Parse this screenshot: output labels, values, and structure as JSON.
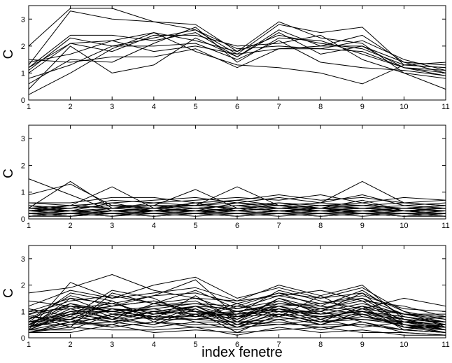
{
  "chart_data": [
    {
      "type": "line",
      "ylabel": "C",
      "xlabel": "",
      "xlim": [
        1,
        11
      ],
      "ylim": [
        0,
        3.5
      ],
      "xticks": [
        "1",
        "2",
        "3",
        "4",
        "5",
        "6",
        "7",
        "8",
        "9",
        "10",
        "11"
      ],
      "yticks": [
        "0",
        "1",
        "2",
        "3"
      ],
      "grid": false,
      "x": [
        1,
        2,
        3,
        4,
        5,
        6,
        7,
        8,
        9,
        10,
        11
      ],
      "series": [
        {
          "values": [
            2.0,
            3.4,
            3.4,
            2.9,
            2.8,
            1.8,
            2.9,
            2.3,
            2.1,
            1.0,
            0.4
          ]
        },
        {
          "values": [
            1.3,
            3.3,
            3.0,
            2.9,
            2.6,
            1.7,
            2.8,
            2.5,
            2.7,
            1.3,
            1.2
          ]
        },
        {
          "values": [
            1.2,
            2.4,
            2.4,
            2.2,
            2.5,
            1.6,
            2.6,
            2.0,
            2.0,
            1.4,
            1.3
          ]
        },
        {
          "values": [
            0.8,
            1.3,
            2.0,
            2.3,
            2.6,
            1.9,
            2.0,
            1.9,
            1.8,
            1.2,
            0.9
          ]
        },
        {
          "values": [
            0.4,
            2.0,
            1.0,
            1.3,
            2.3,
            1.6,
            2.5,
            1.7,
            2.0,
            1.2,
            1.0
          ]
        },
        {
          "values": [
            0.2,
            1.0,
            1.9,
            2.5,
            1.8,
            1.3,
            1.2,
            1.0,
            0.6,
            1.3,
            1.4
          ]
        },
        {
          "values": [
            1.2,
            2.1,
            1.8,
            2.4,
            2.4,
            2.0,
            2.1,
            2.4,
            1.5,
            1.0,
            0.8
          ]
        },
        {
          "values": [
            1.5,
            1.4,
            1.6,
            1.6,
            1.9,
            1.2,
            1.9,
            1.9,
            2.2,
            1.5,
            1.1
          ]
        },
        {
          "values": [
            1.1,
            2.3,
            2.0,
            2.0,
            2.1,
            1.5,
            2.2,
            1.4,
            1.2,
            1.1,
            0.9
          ]
        },
        {
          "values": [
            1.0,
            2.1,
            2.2,
            2.5,
            2.2,
            1.8,
            2.4,
            2.1,
            1.9,
            1.3,
            1.2
          ]
        },
        {
          "values": [
            1.4,
            1.7,
            2.2,
            1.8,
            2.0,
            1.7,
            1.9,
            2.0,
            2.4,
            1.4,
            1.0
          ]
        },
        {
          "values": [
            0.6,
            1.5,
            1.4,
            2.1,
            2.7,
            1.4,
            2.3,
            2.2,
            1.7,
            1.2,
            1.1
          ]
        }
      ]
    },
    {
      "type": "line",
      "ylabel": "C",
      "xlabel": "",
      "xlim": [
        1,
        11
      ],
      "ylim": [
        0,
        3.5
      ],
      "xticks": [
        "1",
        "2",
        "3",
        "4",
        "5",
        "6",
        "7",
        "8",
        "9",
        "10",
        "11"
      ],
      "yticks": [
        "0",
        "1",
        "2",
        "3"
      ],
      "grid": false,
      "x": [
        1,
        2,
        3,
        4,
        5,
        6,
        7,
        8,
        9,
        10,
        11
      ],
      "series": [
        {
          "values": [
            1.5,
            0.9,
            0.3,
            0.3,
            0.4,
            0.5,
            0.3,
            0.4,
            0.4,
            0.3,
            0.2
          ]
        },
        {
          "values": [
            0.9,
            1.3,
            0.5,
            0.4,
            0.3,
            0.4,
            0.3,
            0.3,
            0.3,
            0.2,
            0.2
          ]
        },
        {
          "values": [
            0.4,
            1.4,
            0.4,
            0.6,
            0.5,
            0.6,
            0.5,
            0.6,
            1.4,
            0.6,
            0.5
          ]
        },
        {
          "values": [
            0.3,
            0.5,
            1.2,
            0.4,
            0.6,
            0.3,
            0.4,
            0.5,
            0.6,
            0.3,
            0.3
          ]
        },
        {
          "values": [
            0.2,
            0.3,
            0.4,
            0.5,
            1.1,
            0.4,
            0.3,
            0.2,
            0.3,
            0.4,
            0.3
          ]
        },
        {
          "values": [
            0.3,
            0.4,
            0.5,
            0.4,
            0.5,
            1.2,
            0.5,
            0.4,
            0.5,
            0.4,
            0.4
          ]
        },
        {
          "values": [
            0.6,
            0.6,
            0.8,
            0.8,
            0.6,
            0.7,
            0.9,
            0.7,
            0.8,
            0.6,
            0.7
          ]
        },
        {
          "values": [
            0.5,
            0.4,
            0.7,
            0.6,
            0.7,
            0.8,
            0.7,
            0.9,
            0.6,
            0.8,
            0.7
          ]
        },
        {
          "values": [
            0.4,
            0.5,
            0.6,
            0.7,
            0.8,
            0.6,
            0.8,
            0.6,
            0.9,
            0.5,
            0.6
          ]
        },
        {
          "values": [
            0.3,
            0.4,
            0.5,
            0.5,
            0.4,
            0.5,
            0.6,
            0.5,
            0.5,
            0.4,
            0.5
          ]
        },
        {
          "values": [
            0.2,
            0.3,
            0.3,
            0.4,
            0.3,
            0.3,
            0.4,
            0.3,
            0.4,
            0.3,
            0.3
          ]
        },
        {
          "values": [
            0.1,
            0.2,
            0.2,
            0.2,
            0.2,
            0.2,
            0.2,
            0.2,
            0.2,
            0.2,
            0.2
          ]
        },
        {
          "values": [
            0.2,
            0.1,
            0.3,
            0.2,
            0.3,
            0.2,
            0.3,
            0.2,
            0.3,
            0.2,
            0.1
          ]
        },
        {
          "values": [
            0.1,
            0.2,
            0.1,
            0.3,
            0.2,
            0.3,
            0.2,
            0.3,
            0.2,
            0.1,
            0.2
          ]
        },
        {
          "values": [
            0.3,
            0.2,
            0.4,
            0.3,
            0.4,
            0.3,
            0.4,
            0.4,
            0.3,
            0.3,
            0.4
          ]
        },
        {
          "values": [
            0.4,
            0.3,
            0.3,
            0.4,
            0.5,
            0.4,
            0.5,
            0.3,
            0.4,
            0.5,
            0.4
          ]
        },
        {
          "values": [
            0.2,
            0.3,
            0.2,
            0.3,
            0.2,
            0.4,
            0.3,
            0.4,
            0.2,
            0.3,
            0.2
          ]
        },
        {
          "values": [
            0.1,
            0.1,
            0.2,
            0.1,
            0.2,
            0.1,
            0.2,
            0.1,
            0.2,
            0.1,
            0.1
          ]
        },
        {
          "values": [
            0.3,
            0.5,
            0.4,
            0.5,
            0.3,
            0.6,
            0.4,
            0.5,
            0.4,
            0.4,
            0.5
          ]
        },
        {
          "values": [
            0.5,
            0.3,
            0.6,
            0.3,
            0.6,
            0.3,
            0.6,
            0.4,
            0.7,
            0.3,
            0.4
          ]
        },
        {
          "values": [
            0.2,
            0.2,
            0.3,
            0.2,
            0.3,
            0.2,
            0.3,
            0.3,
            0.2,
            0.2,
            0.3
          ]
        },
        {
          "values": [
            0.1,
            0.2,
            0.1,
            0.2,
            0.1,
            0.2,
            0.1,
            0.2,
            0.1,
            0.2,
            0.1
          ]
        },
        {
          "values": [
            0.3,
            0.3,
            0.2,
            0.3,
            0.3,
            0.2,
            0.3,
            0.2,
            0.3,
            0.3,
            0.2
          ]
        },
        {
          "values": [
            0.4,
            0.4,
            0.5,
            0.3,
            0.4,
            0.5,
            0.4,
            0.5,
            0.4,
            0.3,
            0.4
          ]
        },
        {
          "values": [
            0.2,
            0.1,
            0.2,
            0.1,
            0.2,
            0.1,
            0.2,
            0.1,
            0.2,
            0.1,
            0.2
          ]
        },
        {
          "values": [
            0.6,
            0.5,
            0.4,
            0.5,
            0.5,
            0.7,
            0.5,
            0.6,
            0.5,
            0.6,
            0.5
          ]
        }
      ]
    },
    {
      "type": "line",
      "ylabel": "C",
      "xlabel": "index fenetre",
      "xlim": [
        1,
        11
      ],
      "ylim": [
        0,
        3.5
      ],
      "xticks": [
        "1",
        "2",
        "3",
        "4",
        "5",
        "6",
        "7",
        "8",
        "9",
        "10",
        "11"
      ],
      "yticks": [
        "0",
        "1",
        "2",
        "3"
      ],
      "grid": false,
      "x": [
        1,
        2,
        3,
        4,
        5,
        6,
        7,
        8,
        9,
        10,
        11
      ],
      "series": [
        {
          "values": [
            1.7,
            1.9,
            2.4,
            1.8,
            1.5,
            1.4,
            2.0,
            1.6,
            2.0,
            0.7,
            0.3
          ]
        },
        {
          "values": [
            0.3,
            2.1,
            1.5,
            2.0,
            2.3,
            1.5,
            1.9,
            1.5,
            1.9,
            1.0,
            0.4
          ]
        },
        {
          "values": [
            0.5,
            1.0,
            1.2,
            1.6,
            2.2,
            0.8,
            1.4,
            1.0,
            1.7,
            0.4,
            0.2
          ]
        },
        {
          "values": [
            0.9,
            0.4,
            1.7,
            1.3,
            1.8,
            1.1,
            1.6,
            1.3,
            1.5,
            0.6,
            0.3
          ]
        },
        {
          "values": [
            1.4,
            1.2,
            1.0,
            0.8,
            0.7,
            1.0,
            1.2,
            0.7,
            1.1,
            1.5,
            1.2
          ]
        },
        {
          "values": [
            0.2,
            0.6,
            0.5,
            0.9,
            1.0,
            0.2,
            0.9,
            0.6,
            0.7,
            0.5,
            0.2
          ]
        },
        {
          "values": [
            0.4,
            1.5,
            0.9,
            1.1,
            1.3,
            1.2,
            1.7,
            1.2,
            1.8,
            0.8,
            0.6
          ]
        },
        {
          "values": [
            0.6,
            1.7,
            1.4,
            0.7,
            1.6,
            0.6,
            1.5,
            0.9,
            1.2,
            0.3,
            0.5
          ]
        },
        {
          "values": [
            1.1,
            0.8,
            1.8,
            1.5,
            0.8,
            1.3,
            0.8,
            1.6,
            0.8,
            0.6,
            0.8
          ]
        },
        {
          "values": [
            0.3,
            0.9,
            0.7,
            0.5,
            1.1,
            0.4,
            1.0,
            0.5,
            1.0,
            0.4,
            0.4
          ]
        },
        {
          "values": [
            0.8,
            0.6,
            1.1,
            1.0,
            0.9,
            0.9,
            1.1,
            0.8,
            0.9,
            0.7,
            0.6
          ]
        },
        {
          "values": [
            0.5,
            1.3,
            0.8,
            1.2,
            1.4,
            0.7,
            1.3,
            1.1,
            1.4,
            0.5,
            0.3
          ]
        },
        {
          "values": [
            0.2,
            0.5,
            0.6,
            0.4,
            0.6,
            0.3,
            0.7,
            0.3,
            0.6,
            0.2,
            0.1
          ]
        },
        {
          "values": [
            1.0,
            1.1,
            1.3,
            0.9,
            1.2,
            1.1,
            1.4,
            1.0,
            1.3,
            0.9,
            0.7
          ]
        },
        {
          "values": [
            0.4,
            0.7,
            0.4,
            0.6,
            0.5,
            0.5,
            0.6,
            0.4,
            0.5,
            0.3,
            0.2
          ]
        },
        {
          "values": [
            0.7,
            1.6,
            1.2,
            1.4,
            1.0,
            0.9,
            1.8,
            1.4,
            1.1,
            0.9,
            0.9
          ]
        },
        {
          "values": [
            0.3,
            0.3,
            0.9,
            0.7,
            0.7,
            0.6,
            0.5,
            0.7,
            0.4,
            0.6,
            0.4
          ]
        },
        {
          "values": [
            0.6,
            1.0,
            1.0,
            1.1,
            0.8,
            1.2,
            1.0,
            0.9,
            1.0,
            0.8,
            0.5
          ]
        },
        {
          "values": [
            0.9,
            1.4,
            1.6,
            1.3,
            1.5,
            1.0,
            1.2,
            1.3,
            1.6,
            1.1,
            1.0
          ]
        },
        {
          "values": [
            0.2,
            0.4,
            0.3,
            0.3,
            0.4,
            0.1,
            0.4,
            0.2,
            0.3,
            0.1,
            0.1
          ]
        },
        {
          "values": [
            1.2,
            1.8,
            1.5,
            1.7,
            1.9,
            1.4,
            1.6,
            1.8,
            1.4,
            1.2,
            0.8
          ]
        },
        {
          "values": [
            0.4,
            0.8,
            0.6,
            0.8,
            0.7,
            0.8,
            0.9,
            0.6,
            0.8,
            0.5,
            0.3
          ]
        },
        {
          "values": [
            0.5,
            1.2,
            1.1,
            0.9,
            1.1,
            0.5,
            1.1,
            0.9,
            1.2,
            0.7,
            0.6
          ]
        },
        {
          "values": [
            0.3,
            0.6,
            0.8,
            0.5,
            0.9,
            0.4,
            0.8,
            0.5,
            0.9,
            0.4,
            0.3
          ]
        },
        {
          "values": [
            0.6,
            0.9,
            1.2,
            1.4,
            1.0,
            0.7,
            1.5,
            1.1,
            1.5,
            0.9,
            0.8
          ]
        },
        {
          "values": [
            0.7,
            1.3,
            1.0,
            1.2,
            1.3,
            1.0,
            1.3,
            1.2,
            1.0,
            0.8,
            0.5
          ]
        },
        {
          "values": [
            0.2,
            0.2,
            0.5,
            0.2,
            0.3,
            0.2,
            0.3,
            0.4,
            0.2,
            0.2,
            0.1
          ]
        },
        {
          "values": [
            1.0,
            1.5,
            1.3,
            1.6,
            1.7,
            1.3,
            1.7,
            1.5,
            1.7,
            1.0,
            0.7
          ]
        },
        {
          "values": [
            0.4,
            1.1,
            0.7,
            1.0,
            0.6,
            0.6,
            0.7,
            0.8,
            0.7,
            0.6,
            0.5
          ]
        },
        {
          "values": [
            0.8,
            0.7,
            1.4,
            0.6,
            1.2,
            0.8,
            1.2,
            0.7,
            1.1,
            0.5,
            0.4
          ]
        },
        {
          "values": [
            0.5,
            0.5,
            0.9,
            0.8,
            0.8,
            0.9,
            1.0,
            1.0,
            0.6,
            0.3,
            0.2
          ]
        },
        {
          "values": [
            0.3,
            1.0,
            0.6,
            1.0,
            1.2,
            0.5,
            0.9,
            0.8,
            1.0,
            0.6,
            0.6
          ]
        },
        {
          "values": [
            0.6,
            0.7,
            1.1,
            0.7,
            0.9,
            1.0,
            0.8,
            1.1,
            0.9,
            0.4,
            0.5
          ]
        },
        {
          "values": [
            0.9,
            1.2,
            0.7,
            1.3,
            1.0,
            0.8,
            1.1,
            0.6,
            1.2,
            0.9,
            0.6
          ]
        },
        {
          "values": [
            0.2,
            0.6,
            0.4,
            0.6,
            0.4,
            0.4,
            0.5,
            0.5,
            0.5,
            0.3,
            0.2
          ]
        },
        {
          "values": [
            0.4,
            0.9,
            1.0,
            0.8,
            1.2,
            0.6,
            1.2,
            0.9,
            1.0,
            0.7,
            0.4
          ]
        }
      ]
    }
  ]
}
